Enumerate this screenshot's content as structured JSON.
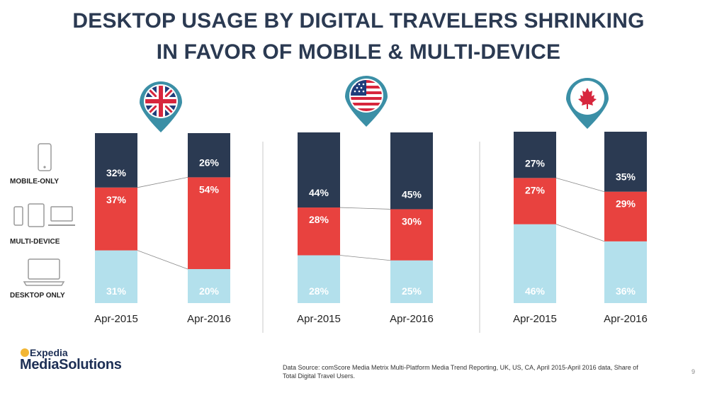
{
  "title": {
    "line1": "DESKTOP USAGE BY DIGITAL TRAVELERS SHRINKING",
    "line2": "IN FAVOR OF MOBILE & MULTI-DEVICE"
  },
  "row_labels": {
    "mobile": "MOBILE-ONLY",
    "multi": "MULTI-DEVICE",
    "desktop": "DESKTOP ONLY"
  },
  "colors": {
    "mobile": "#2b3a52",
    "multi": "#e8423f",
    "desktop": "#b3e0ec",
    "title": "#2b3a52",
    "pin": "#3b8fa6"
  },
  "chart_data": [
    {
      "type": "bar",
      "stacked": true,
      "region_icon": "uk-flag-pin-icon",
      "categories": [
        "Apr-2015",
        "Apr-2016"
      ],
      "series": [
        {
          "name": "DESKTOP ONLY",
          "values": [
            31,
            20
          ]
        },
        {
          "name": "MULTI-DEVICE",
          "values": [
            37,
            54
          ]
        },
        {
          "name": "MOBILE-ONLY",
          "values": [
            32,
            26
          ]
        }
      ],
      "ylim": [
        0,
        100
      ]
    },
    {
      "type": "bar",
      "stacked": true,
      "region_icon": "us-flag-pin-icon",
      "categories": [
        "Apr-2015",
        "Apr-2016"
      ],
      "series": [
        {
          "name": "DESKTOP ONLY",
          "values": [
            28,
            25
          ]
        },
        {
          "name": "MULTI-DEVICE",
          "values": [
            28,
            30
          ]
        },
        {
          "name": "MOBILE-ONLY",
          "values": [
            44,
            45
          ]
        }
      ],
      "ylim": [
        0,
        100
      ]
    },
    {
      "type": "bar",
      "stacked": true,
      "region_icon": "canada-flag-pin-icon",
      "categories": [
        "Apr-2015",
        "Apr-2016"
      ],
      "series": [
        {
          "name": "DESKTOP ONLY",
          "values": [
            46,
            36
          ]
        },
        {
          "name": "MULTI-DEVICE",
          "values": [
            27,
            29
          ]
        },
        {
          "name": "MOBILE-ONLY",
          "values": [
            27,
            35
          ]
        }
      ],
      "ylim": [
        0,
        100
      ]
    }
  ],
  "source": "Data Source: comScore Media Metrix Multi-Platform Media Trend Reporting, UK, US, CA, April 2015-April 2016 data, Share of Total Digital Travel Users.",
  "page_number": "9",
  "logo": {
    "top": "Expedia",
    "main": "MediaSolutions"
  }
}
